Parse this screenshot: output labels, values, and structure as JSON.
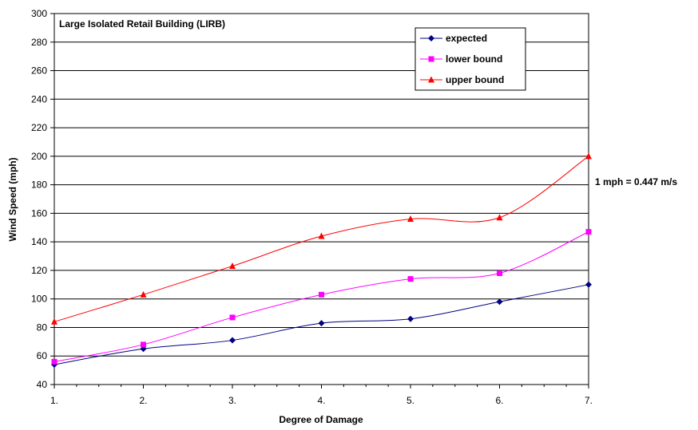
{
  "chart_data": {
    "type": "line",
    "title": "Large Isolated Retail Building (LIRB)",
    "xlabel": "Degree of Damage",
    "ylabel": "Wind Speed (mph)",
    "categories": [
      "1.",
      "2.",
      "3.",
      "4.",
      "5.",
      "6.",
      "7."
    ],
    "ylim": [
      40,
      300
    ],
    "ytick_step": 20,
    "grid": "horizontal",
    "legend_position": "top-right",
    "annotation": "1 mph = 0.447 m/s",
    "series": [
      {
        "name": "expected",
        "values": [
          54,
          65,
          71,
          83,
          86,
          98,
          110
        ],
        "color": "#000080",
        "marker": "diamond"
      },
      {
        "name": "lower bound",
        "values": [
          56,
          68,
          87,
          103,
          114,
          118,
          147
        ],
        "color": "#ff00ff",
        "marker": "square"
      },
      {
        "name": "upper bound",
        "values": [
          84,
          103,
          123,
          144,
          156,
          157,
          200
        ],
        "color": "#ff0000",
        "marker": "triangle"
      }
    ]
  }
}
